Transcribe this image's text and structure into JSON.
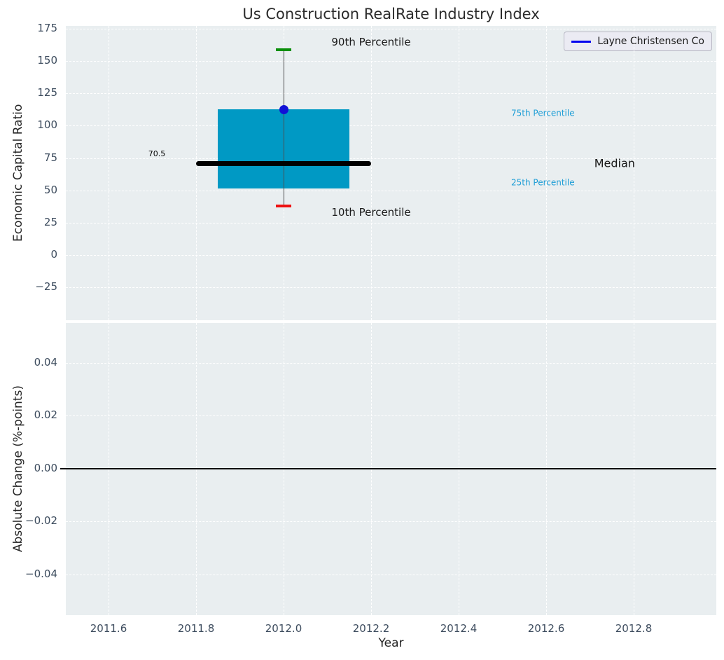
{
  "title": "Us Construction RealRate Industry Index",
  "style": {
    "plot_bg": "#e9eef0",
    "grid_color": "#ffffff",
    "tick_color": "#3d4c5e",
    "title_color": "#2b2b2b"
  },
  "chart_data": [
    {
      "id": "top",
      "type": "boxplot",
      "title": "Us Construction RealRate Industry Index",
      "ylabel": "Economic Capital Ratio",
      "yticks": [
        175,
        150,
        125,
        100,
        75,
        50,
        25,
        0,
        -25
      ],
      "ytick_labels": [
        "175",
        "150",
        "125",
        "100",
        "75",
        "50",
        "25",
        "0",
        "−25"
      ],
      "ylim": [
        -50.5,
        177.2
      ],
      "xlim": [
        2011.5024,
        2012.9888
      ],
      "xgrid_ticks": [
        2011.6,
        2011.8,
        2012.0,
        2012.2,
        2012.4,
        2012.6,
        2012.8
      ],
      "grid": true,
      "legend": {
        "position": "upper right",
        "entries": [
          {
            "label": "Layne Christensen Co",
            "color": "#0000ee"
          }
        ]
      },
      "box": {
        "x": 2012.0,
        "p90": 159,
        "p75": 112.5,
        "median": 70.5,
        "p25": 51.5,
        "p10": 38,
        "company_value": 112.5,
        "box_halfwidth": 0.15,
        "median_halfwidth": 0.2,
        "cap_halfwidth": 0.018,
        "colors": {
          "box": "#0099c4",
          "median": "#000000",
          "whisker": "#4d4d4d",
          "cap_top": "#0a8f0a",
          "cap_bottom": "#ee1111",
          "point": "#1111d6"
        }
      },
      "annotations": [
        {
          "name": "label-90th-percentile",
          "text": "90th Percentile",
          "x": 2012.2,
          "y": 164,
          "color": "#1a1a1a",
          "size": 15,
          "anchor": "middle"
        },
        {
          "name": "label-10th-percentile",
          "text": "10th Percentile",
          "x": 2012.2,
          "y": 32.5,
          "color": "#1a1a1a",
          "size": 15,
          "anchor": "middle"
        },
        {
          "name": "label-75th-percentile",
          "text": "75th Percentile",
          "x": 2012.52,
          "y": 109.5,
          "color": "#1f9ed6",
          "size": 12,
          "anchor": "start"
        },
        {
          "name": "label-25th-percentile",
          "text": "25th Percentile",
          "x": 2012.52,
          "y": 55.8,
          "color": "#1f9ed6",
          "size": 12,
          "anchor": "start"
        },
        {
          "name": "label-median",
          "text": "Median",
          "x": 2012.71,
          "y": 70.5,
          "color": "#1a1a1a",
          "size": 16,
          "anchor": "start"
        },
        {
          "name": "label-median-value",
          "text": "70.5",
          "x": 2011.73,
          "y": 78,
          "color": "#000000",
          "size": 11,
          "anchor": "end"
        }
      ]
    },
    {
      "id": "bottom",
      "type": "line",
      "ylabel": "Absolute Change (%-points)",
      "xlabel": "Year",
      "yticks": [
        0.04,
        0.02,
        0,
        -0.02,
        -0.04
      ],
      "ytick_labels": [
        "0.04",
        "0.02",
        "0.00",
        "−0.02",
        "−0.04"
      ],
      "ylim": [
        -0.0555,
        0.055
      ],
      "xticks": [
        2011.6,
        2011.8,
        2012.0,
        2012.2,
        2012.4,
        2012.6,
        2012.8
      ],
      "xtick_labels": [
        "2011.6",
        "2011.8",
        "2012.0",
        "2012.2",
        "2012.4",
        "2012.6",
        "2012.8"
      ],
      "xlim": [
        2011.5024,
        2012.9888
      ],
      "grid": true,
      "zero_line": {
        "y": 0,
        "color": "#000000"
      },
      "series": [
        {
          "name": "Layne Christensen Co",
          "color": "#0000ee",
          "x": [],
          "y": []
        }
      ]
    }
  ]
}
